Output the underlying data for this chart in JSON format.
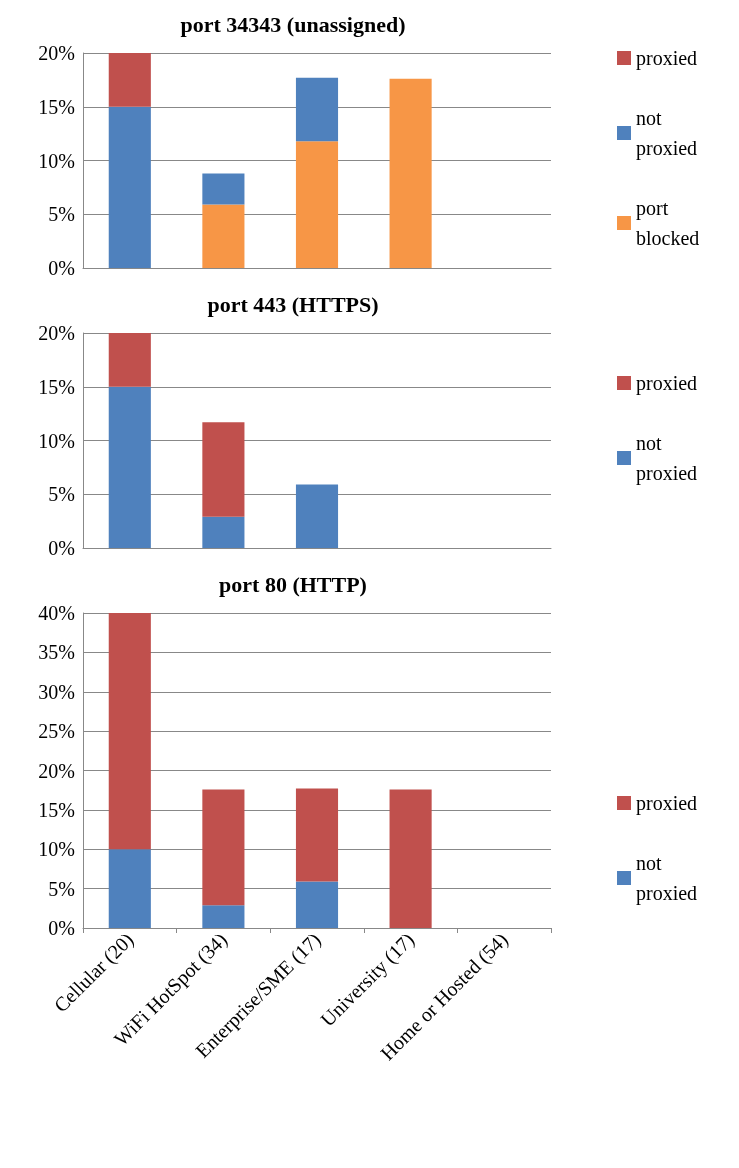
{
  "chart_data": [
    {
      "type": "bar",
      "title": "port 34343 (unassigned)",
      "stacked": true,
      "categories": [
        null,
        null,
        null,
        null,
        null
      ],
      "series": [
        {
          "name": "port blocked",
          "color": "#f79646",
          "values": [
            0,
            5.9,
            11.8,
            17.6,
            0
          ]
        },
        {
          "name": "not proxied",
          "color": "#4f81bd",
          "values": [
            15,
            2.9,
            5.9,
            0,
            0
          ]
        },
        {
          "name": "proxied",
          "color": "#c0504d",
          "values": [
            5,
            0,
            0,
            0,
            0
          ]
        }
      ],
      "ylim": [
        0,
        20
      ],
      "yticks": [
        {
          "value": 0,
          "label": "0%"
        },
        {
          "value": 5,
          "label": "5%"
        },
        {
          "value": 10,
          "label": "10%"
        },
        {
          "value": 15,
          "label": "15%"
        },
        {
          "value": 20,
          "label": "20%"
        }
      ],
      "grid": "y",
      "legend": "right",
      "tick_labels": "y"
    },
    {
      "type": "bar",
      "title": "port 443 (HTTPS)",
      "stacked": true,
      "categories": [
        null,
        null,
        null,
        null,
        null
      ],
      "series": [
        {
          "name": "not proxied",
          "color": "#4f81bd",
          "values": [
            15,
            2.9,
            5.9,
            0,
            0
          ]
        },
        {
          "name": "proxied",
          "color": "#c0504d",
          "values": [
            5,
            8.8,
            0,
            0,
            0
          ]
        }
      ],
      "ylim": [
        0,
        20
      ],
      "yticks": [
        {
          "value": 0,
          "label": "0%"
        },
        {
          "value": 5,
          "label": "5%"
        },
        {
          "value": 10,
          "label": "10%"
        },
        {
          "value": 15,
          "label": "15%"
        },
        {
          "value": 20,
          "label": "20%"
        }
      ],
      "grid": "y",
      "legend": "right",
      "tick_labels": "y"
    },
    {
      "type": "bar",
      "title": "port 80 (HTTP)",
      "stacked": true,
      "categories": [
        "Cellular (20)",
        "WiFi HotSpot (34)",
        "Enterprise/SME (17)",
        "University (17)",
        "Home or Hosted (54)"
      ],
      "series": [
        {
          "name": "not proxied",
          "color": "#4f81bd",
          "values": [
            10,
            2.9,
            5.9,
            0,
            0
          ]
        },
        {
          "name": "proxied",
          "color": "#c0504d",
          "values": [
            30,
            14.7,
            11.8,
            17.6,
            0
          ]
        }
      ],
      "ylim": [
        0,
        40
      ],
      "yticks": [
        {
          "value": 0,
          "label": "0%"
        },
        {
          "value": 5,
          "label": "5%"
        },
        {
          "value": 10,
          "label": "10%"
        },
        {
          "value": 15,
          "label": "15%"
        },
        {
          "value": 20,
          "label": "20%"
        },
        {
          "value": 25,
          "label": "25%"
        },
        {
          "value": 30,
          "label": "30%"
        },
        {
          "value": 35,
          "label": "35%"
        },
        {
          "value": 40,
          "label": "40%"
        }
      ],
      "grid": "y",
      "legend": "right"
    }
  ]
}
